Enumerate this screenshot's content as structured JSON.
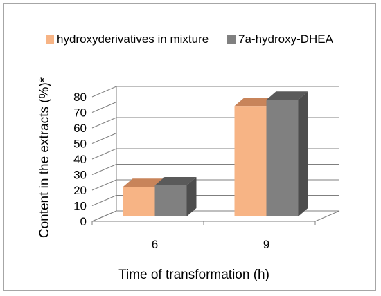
{
  "chart_data": {
    "type": "bar",
    "categories": [
      "6",
      "9"
    ],
    "series": [
      {
        "name": "hydroxyderivatives in mixture",
        "values": [
          19,
          71
        ]
      },
      {
        "name": "7a-hydroxy-DHEA",
        "values": [
          20,
          75
        ]
      }
    ],
    "xlabel": "Time of transformation (h)",
    "ylabel": "Content in the extracts (%)*",
    "ylim": [
      0,
      80
    ],
    "yticks": [
      0,
      10,
      20,
      30,
      40,
      50,
      60,
      70,
      80
    ],
    "grid": true,
    "legend_position": "top",
    "projection": "3d-column",
    "colors": {
      "series_0_front": "#f7b485",
      "series_0_top": "#c8845a",
      "series_1_front": "#808080",
      "series_1_side": "#4d4d4d",
      "series_1_top": "#5a5a5a",
      "gridline": "#7f7f7f"
    }
  }
}
